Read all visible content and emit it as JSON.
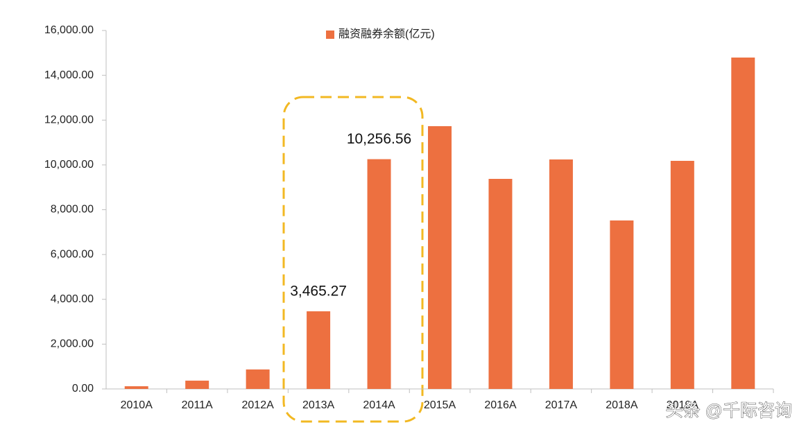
{
  "chart_data": {
    "type": "bar",
    "categories": [
      "2010A",
      "2011A",
      "2012A",
      "2013A",
      "2014A",
      "2015A",
      "2016A",
      "2017A",
      "2018A",
      "2019A",
      null
    ],
    "series": [
      {
        "name": "融资融券余额(亿元)",
        "color": "#ed7040",
        "values": [
          120,
          370,
          870,
          3465.27,
          10256.56,
          11730,
          9377,
          10244,
          7520,
          10182,
          14793
        ],
        "value_labels": [
          null,
          null,
          null,
          "3,465.27",
          "10,256.56",
          null,
          null,
          null,
          null,
          null,
          null
        ]
      }
    ],
    "ylim": [
      0,
      16000
    ],
    "yticks": [
      {
        "value": 0,
        "label": "0.00"
      },
      {
        "value": 2000,
        "label": "2,000.00"
      },
      {
        "value": 4000,
        "label": "4,000.00"
      },
      {
        "value": 6000,
        "label": "6,000.00"
      },
      {
        "value": 8000,
        "label": "8,000.00"
      },
      {
        "value": 10000,
        "label": "10,000.00"
      },
      {
        "value": 12000,
        "label": "12,000.00"
      },
      {
        "value": 14000,
        "label": "14,000.00"
      },
      {
        "value": 16000,
        "label": "16,000.00"
      }
    ],
    "legend_position": "top",
    "annotation": "头条 @千际咨询"
  }
}
